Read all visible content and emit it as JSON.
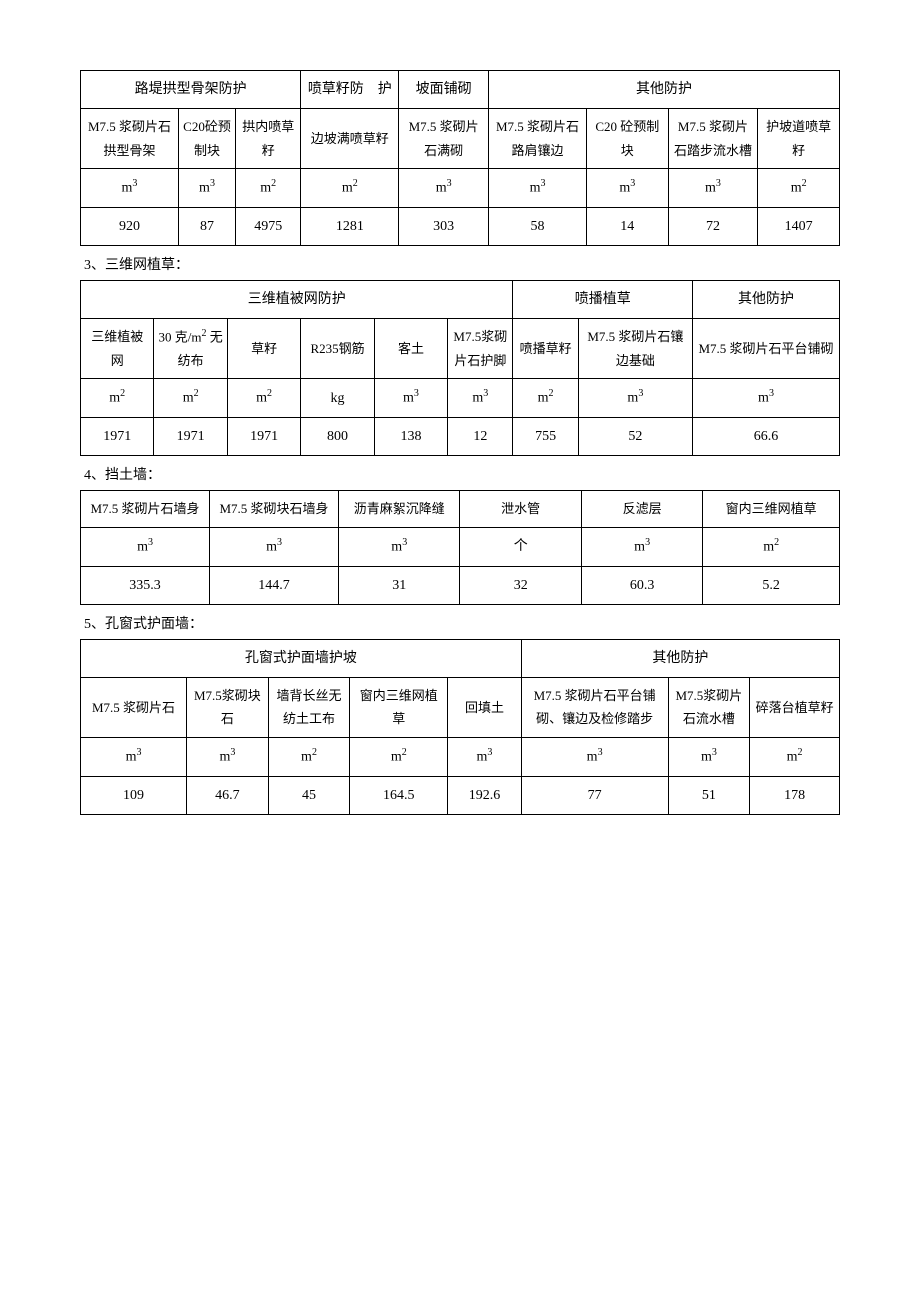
{
  "table1": {
    "group_headers": [
      "路堤拱型骨架防护",
      "喷草籽防　护",
      "坡面铺砌",
      "其他防护"
    ],
    "subheaders": [
      "M7.5 浆砌片石拱型骨架",
      "C20砼预制块",
      "拱内喷草籽",
      "边坡满喷草籽",
      "M7.5 浆砌片石满砌",
      "M7.5 浆砌片石路肩镶边",
      "C20 砼预制块",
      "M7.5 浆砌片石踏步流水槽",
      "护坡道喷草籽"
    ],
    "units": [
      "m³",
      "m³",
      "m²",
      "m²",
      "m³",
      "m³",
      "m³",
      "m³",
      "m²"
    ],
    "values": [
      "920",
      "87",
      "4975",
      "1281",
      "303",
      "58",
      "14",
      "72",
      "1407"
    ]
  },
  "section3": "3、三维网植草：",
  "table2": {
    "group_headers": [
      "三维植被网防护",
      "喷播植草",
      "其他防护"
    ],
    "subheaders": [
      "三维植被网",
      "30 克/m² 无纺布",
      "草籽",
      "R235钢筋",
      "客土",
      "M7.5浆砌片石护脚",
      "喷播草籽",
      "M7.5 浆砌片石镶边基础",
      "M7.5 浆砌片石平台铺砌"
    ],
    "units": [
      "m²",
      "m²",
      "m²",
      "kg",
      "m³",
      "m³",
      "m²",
      "m³",
      "m³"
    ],
    "values": [
      "1971",
      "1971",
      "1971",
      "800",
      "138",
      "12",
      "755",
      "52",
      "66.6"
    ]
  },
  "section4": "4、挡土墙：",
  "table3": {
    "headers": [
      "M7.5 浆砌片石墙身",
      "M7.5 浆砌块石墙身",
      "沥青麻絮沉降缝",
      "泄水管",
      "反滤层",
      "窗内三维网植草"
    ],
    "units": [
      "m³",
      "m³",
      "m³",
      "个",
      "m³",
      "m²"
    ],
    "values": [
      "335.3",
      "144.7",
      "31",
      "32",
      "60.3",
      "5.2"
    ]
  },
  "section5": "5、孔窗式护面墙：",
  "table4": {
    "group_headers": [
      "孔窗式护面墙护坡",
      "其他防护"
    ],
    "subheaders": [
      "M7.5 浆砌片石",
      "M7.5浆砌块石",
      "墙背长丝无纺土工布",
      "窗内三维网植草",
      "回填土",
      "M7.5 浆砌片石平台铺砌、镶边及检修踏步",
      "M7.5浆砌片石流水槽",
      "碎落台植草籽"
    ],
    "units": [
      "m³",
      "m³",
      "m²",
      "m²",
      "m³",
      "m³",
      "m³",
      "m²"
    ],
    "values": [
      "109",
      "46.7",
      "45",
      "164.5",
      "192.6",
      "77",
      "51",
      "178"
    ]
  }
}
